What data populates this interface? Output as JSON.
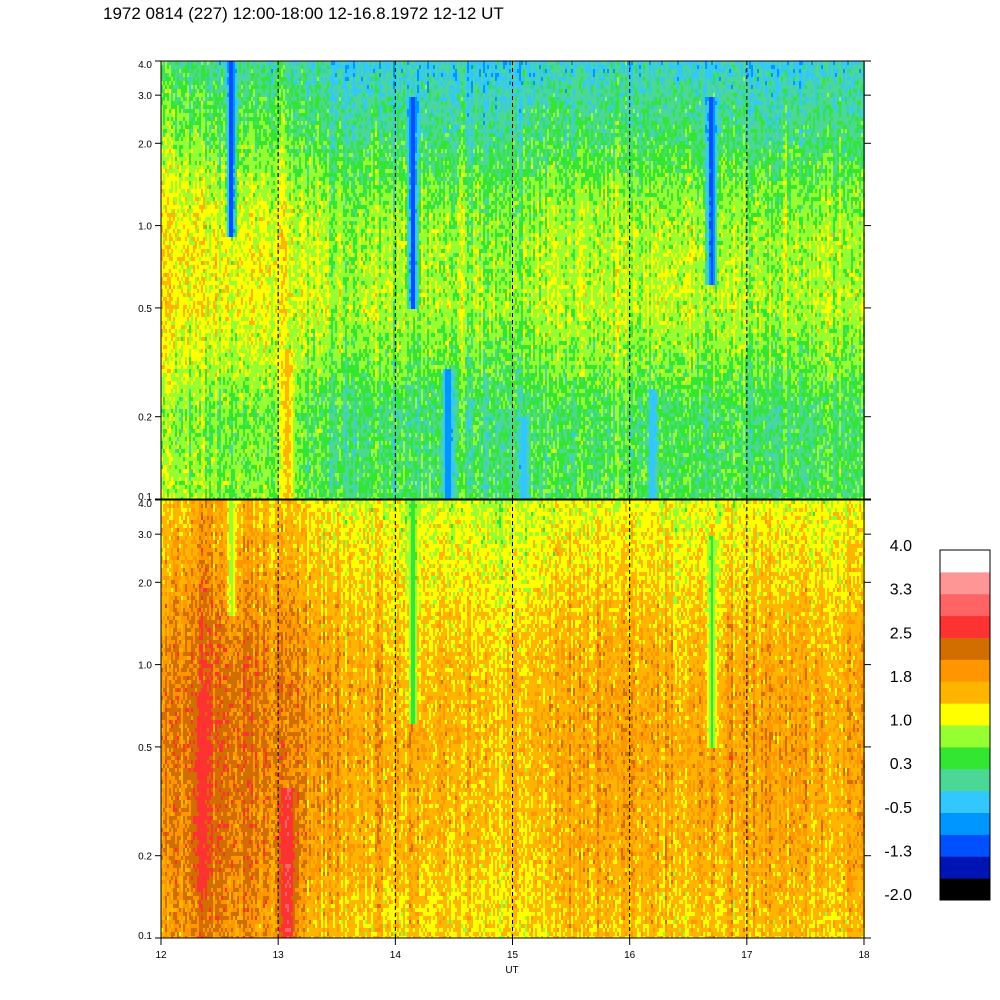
{
  "title": "1972 0814 (227) 12:00-18:00 12-16.8.1972  12-12 UT",
  "chart_data": {
    "type": "heatmap",
    "xlabel": "UT",
    "x_ticks": [
      "12",
      "13",
      "14",
      "15",
      "16",
      "17",
      "18"
    ],
    "x_range": [
      12,
      18
    ],
    "dashed_hour_lines": [
      13,
      14,
      15,
      16,
      17
    ],
    "panels": [
      {
        "name": "top",
        "y_scale": "log",
        "y_range": [
          0.1,
          4.0
        ],
        "y_ticks": [
          {
            "value": 0.1,
            "label": "0.1"
          },
          {
            "value": 0.2,
            "label": "0.2"
          },
          {
            "value": 0.5,
            "label": "0.5"
          },
          {
            "value": 1.0,
            "label": "1.0"
          },
          {
            "value": 2.0,
            "label": "2.0"
          },
          {
            "value": 3.0,
            "label": "3.0"
          },
          {
            "value": 4.0,
            "label": "4.0"
          }
        ],
        "level_profile": [
          {
            "y": 0.1,
            "level": 0.4
          },
          {
            "y": 0.2,
            "level": 0.3
          },
          {
            "y": 0.3,
            "level": 0.6
          },
          {
            "y": 0.5,
            "level": 0.9
          },
          {
            "y": 1.0,
            "level": 0.8
          },
          {
            "y": 2.0,
            "level": 0.3
          },
          {
            "y": 4.0,
            "level": -0.2
          }
        ],
        "time_modifiers": [
          {
            "t": 12.0,
            "delta": 0.5
          },
          {
            "t": 12.5,
            "delta": 0.3
          },
          {
            "t": 13.0,
            "delta": 0.4
          },
          {
            "t": 13.5,
            "delta": 0.0
          },
          {
            "t": 14.5,
            "delta": -0.1
          },
          {
            "t": 15.0,
            "delta": -0.1
          },
          {
            "t": 15.5,
            "delta": 0.1
          },
          {
            "t": 16.5,
            "delta": 0.0
          },
          {
            "t": 17.5,
            "delta": 0.0
          },
          {
            "t": 18.0,
            "delta": 0.0
          }
        ],
        "dips": [
          {
            "t": 12.6,
            "y_min": 0.9,
            "y_max": 4.0,
            "level": -1.3
          },
          {
            "t": 14.15,
            "y_min": 0.5,
            "y_max": 3.0,
            "level": -1.3
          },
          {
            "t": 16.7,
            "y_min": 0.6,
            "y_max": 3.0,
            "level": -1.3
          },
          {
            "t": 14.45,
            "y_min": 0.1,
            "y_max": 0.3,
            "level": -1.0
          },
          {
            "t": 15.1,
            "y_min": 0.1,
            "y_max": 0.2,
            "level": -0.5
          },
          {
            "t": 16.2,
            "y_min": 0.1,
            "y_max": 0.25,
            "level": -0.5
          }
        ],
        "peaks": [
          {
            "t": 13.08,
            "y_min": 0.1,
            "y_max": 0.35,
            "level": 1.5
          }
        ]
      },
      {
        "name": "bottom",
        "y_scale": "log",
        "y_range": [
          0.1,
          4.0
        ],
        "y_ticks": [
          {
            "value": 0.1,
            "label": "0.1"
          },
          {
            "value": 0.2,
            "label": "0.2"
          },
          {
            "value": 0.5,
            "label": "0.5"
          },
          {
            "value": 1.0,
            "label": "1.0"
          },
          {
            "value": 2.0,
            "label": "2.0"
          },
          {
            "value": 3.0,
            "label": "3.0"
          },
          {
            "value": 4.0,
            "label": "4.0"
          }
        ],
        "level_profile": [
          {
            "y": 0.1,
            "level": 1.5
          },
          {
            "y": 0.2,
            "level": 1.7
          },
          {
            "y": 0.5,
            "level": 1.8
          },
          {
            "y": 1.0,
            "level": 1.7
          },
          {
            "y": 2.0,
            "level": 1.4
          },
          {
            "y": 4.0,
            "level": 1.1
          }
        ],
        "time_modifiers": [
          {
            "t": 12.0,
            "delta": 0.3
          },
          {
            "t": 12.4,
            "delta": 0.6
          },
          {
            "t": 13.0,
            "delta": 0.4
          },
          {
            "t": 13.6,
            "delta": 0.0
          },
          {
            "t": 15.0,
            "delta": -0.2
          },
          {
            "t": 15.5,
            "delta": 0.0
          },
          {
            "t": 16.5,
            "delta": 0.0
          },
          {
            "t": 17.3,
            "delta": 0.1
          },
          {
            "t": 18.0,
            "delta": 0.0
          }
        ],
        "dips": [
          {
            "t": 14.15,
            "y_min": 0.6,
            "y_max": 4.0,
            "level": 0.3
          },
          {
            "t": 16.7,
            "y_min": 0.5,
            "y_max": 3.0,
            "level": 0.5
          },
          {
            "t": 12.6,
            "y_min": 1.5,
            "y_max": 4.0,
            "level": 0.9
          }
        ],
        "peaks": [
          {
            "t": 12.35,
            "y_min": 0.15,
            "y_max": 0.8,
            "level": 2.7
          },
          {
            "t": 13.08,
            "y_min": 0.1,
            "y_max": 0.35,
            "level": 2.9
          }
        ]
      }
    ],
    "colorbar": {
      "levels": [
        {
          "value": -2.0,
          "color": "#000000"
        },
        {
          "value": -1.7,
          "color": "#0014b4"
        },
        {
          "value": -1.3,
          "color": "#0050ff"
        },
        {
          "value": -1.0,
          "color": "#0096ff"
        },
        {
          "value": -0.5,
          "color": "#32c8ff"
        },
        {
          "value": -0.1,
          "color": "#4bd796"
        },
        {
          "value": 0.3,
          "color": "#32e632"
        },
        {
          "value": 0.6,
          "color": "#96ff32"
        },
        {
          "value": 1.0,
          "color": "#ffff00"
        },
        {
          "value": 1.4,
          "color": "#ffb400"
        },
        {
          "value": 1.8,
          "color": "#ff9600"
        },
        {
          "value": 2.1,
          "color": "#d26e00"
        },
        {
          "value": 2.5,
          "color": "#ff3232"
        },
        {
          "value": 2.9,
          "color": "#ff6464"
        },
        {
          "value": 3.3,
          "color": "#ff9696"
        },
        {
          "value": 3.7,
          "color": "#ffffff"
        }
      ],
      "tick_labels": [
        "4.0",
        "3.3",
        "2.5",
        "1.8",
        "1.0",
        "0.3",
        "-0.5",
        "-1.3",
        "-2.0"
      ]
    }
  }
}
